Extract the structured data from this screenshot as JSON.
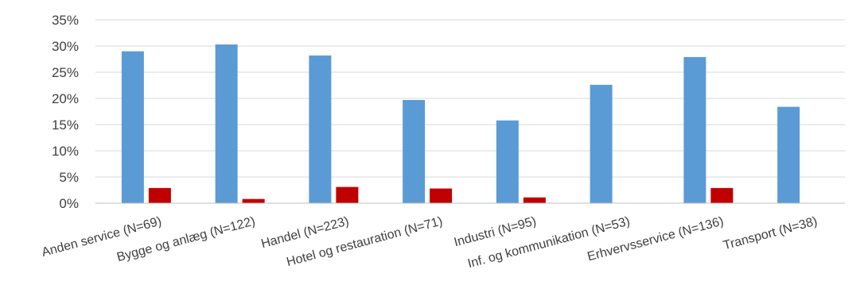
{
  "chart_data": {
    "type": "bar",
    "categories": [
      "Anden service (N=69)",
      "Bygge og anlæg (N=122)",
      "Handel (N=223)",
      "Hotel og restauration (N=71)",
      "Industri (N=95)",
      "Inf. og kommunikation (N=53)",
      "Erhvervsservice (N=136)",
      "Transport (N=38)"
    ],
    "series": [
      {
        "color": "#5b9bd5",
        "values": [
          29.0,
          30.3,
          28.2,
          19.7,
          15.8,
          22.6,
          27.9,
          18.4
        ]
      },
      {
        "color": "#c00000",
        "values": [
          2.9,
          0.8,
          3.1,
          2.8,
          1.1,
          0.0,
          2.9,
          0.0
        ]
      }
    ],
    "ylim": [
      0,
      35
    ],
    "yticks": [
      "0%",
      "5%",
      "10%",
      "15%",
      "20%",
      "25%",
      "30%",
      "35%"
    ],
    "grid": true,
    "title": "",
    "xlabel": "",
    "ylabel": ""
  }
}
